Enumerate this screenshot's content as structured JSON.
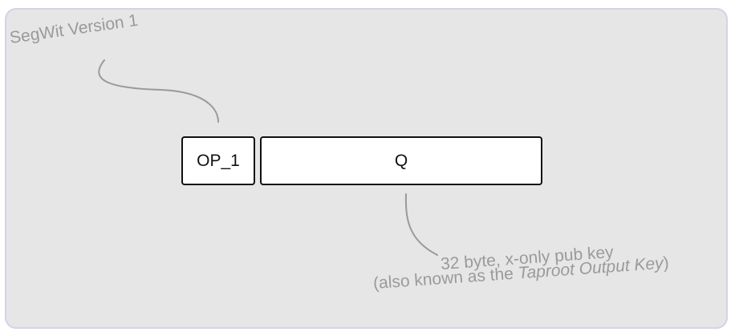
{
  "diagram": {
    "colors": {
      "background": "#e6e6e6",
      "frame_border": "#d3d3e8",
      "box_fill": "#ffffff",
      "box_border": "#111111",
      "annotation": "#9a9a9a"
    },
    "boxes": {
      "opcode_label": "OP_1",
      "key_label": "Q"
    },
    "annotations": {
      "version_label": "SegWit Version 1",
      "key_description": "32 byte, x-only pub key",
      "aka_prefix": "(also known as the ",
      "aka_term": "Taproot Output Key",
      "aka_suffix": ")"
    }
  }
}
